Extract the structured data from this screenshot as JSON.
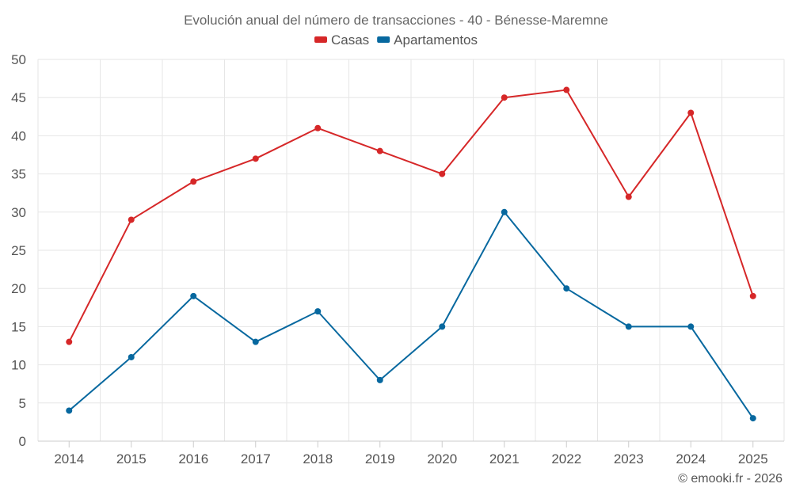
{
  "chart_data": {
    "type": "line",
    "title": "Evolución anual del número de transacciones - 40 - Bénesse-Maremne",
    "categories": [
      "2014",
      "2015",
      "2016",
      "2017",
      "2018",
      "2019",
      "2020",
      "2021",
      "2022",
      "2023",
      "2024",
      "2025"
    ],
    "series": [
      {
        "name": "Casas",
        "color": "#d62728",
        "values": [
          13,
          29,
          34,
          37,
          41,
          38,
          35,
          45,
          46,
          32,
          43,
          19
        ]
      },
      {
        "name": "Apartamentos",
        "color": "#07689f",
        "values": [
          4,
          11,
          19,
          13,
          17,
          8,
          15,
          30,
          20,
          15,
          15,
          3
        ]
      }
    ],
    "ylim": [
      0,
      50
    ],
    "yticks": [
      "0",
      "5",
      "10",
      "15",
      "20",
      "25",
      "30",
      "35",
      "40",
      "45",
      "50"
    ],
    "xlabel": "",
    "ylabel": "",
    "grid": true,
    "legend": "top-center"
  },
  "credit": "© emooki.fr - 2026"
}
